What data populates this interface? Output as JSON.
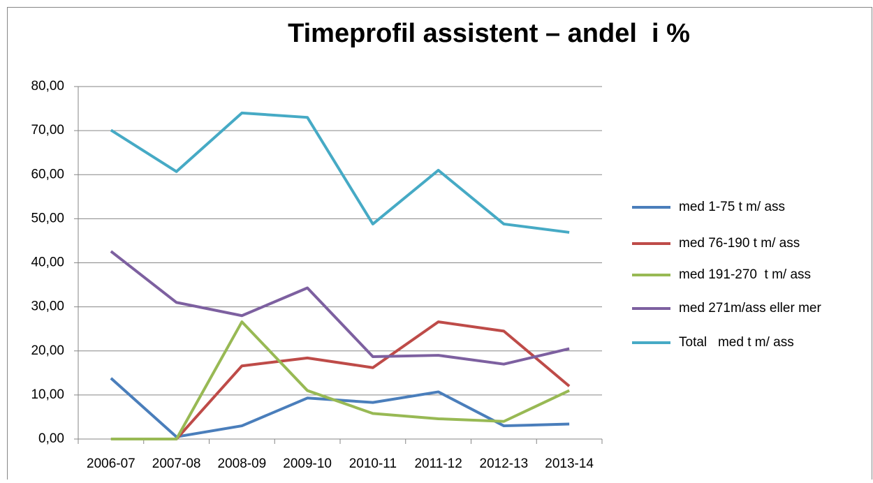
{
  "chart_data": {
    "type": "line",
    "title": "Timeprofil assistent – andel  i %",
    "categories": [
      "2006-07",
      "2007-08",
      "2008-09",
      "2009-10",
      "2010-11",
      "2011-12",
      "2012-13",
      "2013-14"
    ],
    "series": [
      {
        "name": "med 1-75 t m/ ass",
        "color": "#4a7ebb",
        "values": [
          13.8,
          0.5,
          3.0,
          9.3,
          8.3,
          10.7,
          3.0,
          3.4
        ]
      },
      {
        "name": "med 76-190 t m/ ass",
        "color": "#be4b48",
        "values": [
          0,
          0,
          16.6,
          18.4,
          16.2,
          26.6,
          24.5,
          12.0
        ]
      },
      {
        "name": "med 191-270  t m/ ass",
        "color": "#98b954",
        "values": [
          0,
          0,
          26.6,
          11.0,
          5.8,
          4.6,
          4.0,
          11.0
        ]
      },
      {
        "name": "med 271m/ass eller mer",
        "color": "#7d60a0",
        "values": [
          42.6,
          31.0,
          28.0,
          34.3,
          18.7,
          19.0,
          17.0,
          20.5
        ]
      },
      {
        "name": "Total   med t m/ ass",
        "color": "#46aac5",
        "values": [
          70.1,
          60.7,
          74.0,
          73.0,
          48.8,
          61.0,
          48.8,
          46.9
        ]
      }
    ],
    "ylim": [
      0,
      80
    ],
    "yticks": [
      {
        "value": 0,
        "label": "0,00"
      },
      {
        "value": 10,
        "label": "10,00"
      },
      {
        "value": 20,
        "label": "20,00"
      },
      {
        "value": 30,
        "label": "30,00"
      },
      {
        "value": 40,
        "label": "40,00"
      },
      {
        "value": 50,
        "label": "50,00"
      },
      {
        "value": 60,
        "label": "60,00"
      },
      {
        "value": 70,
        "label": "70,00"
      },
      {
        "value": 80,
        "label": "80,00"
      }
    ],
    "grid": true,
    "legend": "right"
  }
}
